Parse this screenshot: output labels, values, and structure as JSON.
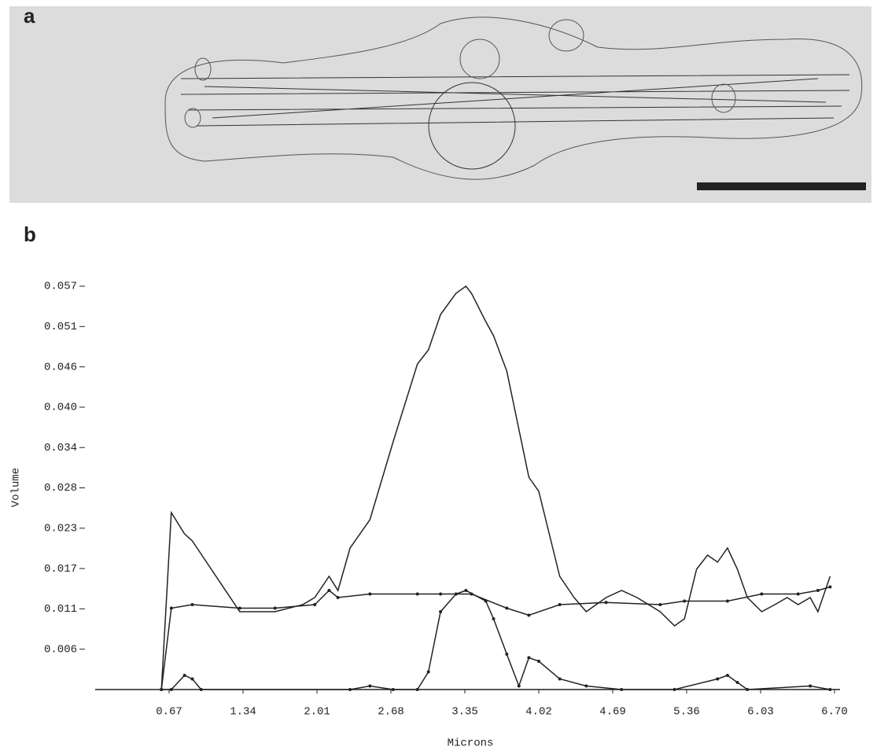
{
  "panel_a_label": "a",
  "chart_data": {
    "type": "line",
    "panel_label": "b",
    "x_label": "Microns",
    "y_label": "Volume",
    "xlim": [
      0,
      6.75
    ],
    "ylim": [
      0,
      0.058
    ],
    "xticks": [
      0.67,
      1.34,
      2.01,
      2.68,
      3.35,
      4.02,
      4.69,
      5.36,
      6.03,
      {
        "value": 6.7,
        "label": "6.70"
      }
    ],
    "yticks": [
      {
        "value": 0.0057,
        "label": "0.006"
      },
      {
        "value": 0.0114,
        "label": "0.011"
      },
      {
        "value": 0.0171,
        "label": "0.017"
      },
      {
        "value": 0.0228,
        "label": "0.023"
      },
      {
        "value": 0.0285,
        "label": "0.028"
      },
      {
        "value": 0.0342,
        "label": "0.034"
      },
      {
        "value": 0.0399,
        "label": "0.040"
      },
      {
        "value": 0.0456,
        "label": "0.046"
      },
      {
        "value": 0.0513,
        "label": "0.051"
      },
      {
        "value": 0.057,
        "label": "0.057"
      }
    ],
    "series": [
      {
        "color": "#222",
        "markers": false,
        "x": [
          0.6,
          0.69,
          0.81,
          0.88,
          1.31,
          1.63,
          1.88,
          1.99,
          2.12,
          2.2,
          2.31,
          2.49,
          2.7,
          2.92,
          3.02,
          3.13,
          3.27,
          3.36,
          3.41,
          3.54,
          3.61,
          3.73,
          3.93,
          4.02,
          4.21,
          4.34,
          4.45,
          4.63,
          4.77,
          4.91,
          5.12,
          5.25,
          5.34,
          5.45,
          5.55,
          5.64,
          5.73,
          5.82,
          5.91,
          6.04,
          6.16,
          6.27,
          6.37,
          6.48,
          6.55,
          6.66
        ],
        "values": [
          0,
          0.025,
          0.022,
          0.021,
          0.011,
          0.011,
          0.012,
          0.013,
          0.016,
          0.014,
          0.02,
          0.024,
          0.035,
          0.046,
          0.048,
          0.053,
          0.056,
          0.057,
          0.056,
          0.052,
          0.05,
          0.045,
          0.03,
          0.028,
          0.016,
          0.013,
          0.011,
          0.013,
          0.014,
          0.013,
          0.011,
          0.009,
          0.01,
          0.017,
          0.019,
          0.018,
          0.02,
          0.017,
          0.013,
          0.011,
          0.012,
          0.013,
          0.012,
          0.013,
          0.011,
          0.016
        ]
      },
      {
        "color": "#222",
        "markers": true,
        "x": [
          0.6,
          0.69,
          0.88,
          1.31,
          1.63,
          1.99,
          2.12,
          2.2,
          2.49,
          2.92,
          3.13,
          3.41,
          3.73,
          3.93,
          4.21,
          4.63,
          5.12,
          5.34,
          5.73,
          6.04,
          6.37,
          6.55,
          6.66
        ],
        "values": [
          0,
          0.0115,
          0.012,
          0.0115,
          0.0115,
          0.012,
          0.014,
          0.013,
          0.0135,
          0.0135,
          0.0135,
          0.0135,
          0.0115,
          0.0105,
          0.012,
          0.0123,
          0.012,
          0.0125,
          0.0125,
          0.0135,
          0.0135,
          0.014,
          0.0145
        ]
      },
      {
        "color": "#222",
        "markers": true,
        "x": [
          0.6,
          0.69,
          0.81,
          0.88,
          0.96,
          2.31,
          2.49,
          2.7,
          2.92,
          3.02,
          3.13,
          3.27,
          3.36,
          3.54,
          3.61,
          3.73,
          3.84,
          3.93,
          4.02,
          4.21,
          4.45,
          4.77,
          5.25,
          5.64,
          5.73,
          5.82,
          5.91,
          6.48,
          6.66
        ],
        "values": [
          0,
          0,
          0.002,
          0.0015,
          0,
          0,
          0.0005,
          0,
          0,
          0.0025,
          0.011,
          0.0135,
          0.014,
          0.0125,
          0.01,
          0.005,
          0.0005,
          0.0045,
          0.004,
          0.0015,
          0.0005,
          0,
          0,
          0.0015,
          0.002,
          0.001,
          0,
          0.0005,
          0
        ]
      }
    ]
  }
}
